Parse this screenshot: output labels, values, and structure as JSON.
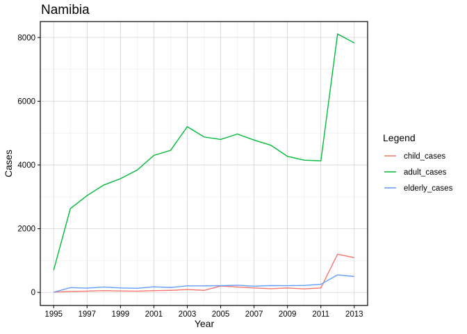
{
  "chart_data": {
    "type": "line",
    "title": "Namibia",
    "xlabel": "Year",
    "ylabel": "Cases",
    "xlim": [
      1994.2,
      2013.8
    ],
    "ylim": [
      -410,
      8500
    ],
    "x_ticks": [
      1995,
      1997,
      1999,
      2001,
      2003,
      2005,
      2007,
      2009,
      2011,
      2013
    ],
    "y_ticks": [
      0,
      2000,
      4000,
      6000,
      8000
    ],
    "x_tick_labels": [
      "1995",
      "1997",
      "1999",
      "2001",
      "2003",
      "2005",
      "2007",
      "2009",
      "2011",
      "2013"
    ],
    "y_tick_labels": [
      "0",
      "2000",
      "4000",
      "6000",
      "8000"
    ],
    "grid": true,
    "legend": {
      "title": "Legend",
      "placement": "right"
    },
    "x": [
      1995,
      1996,
      1997,
      1998,
      1999,
      2000,
      2001,
      2002,
      2003,
      2004,
      2005,
      2006,
      2007,
      2008,
      2009,
      2010,
      2011,
      2012,
      2013
    ],
    "series": [
      {
        "name": "child_cases",
        "color": "#F8766D",
        "values": [
          10,
          30,
          40,
          55,
          45,
          40,
          55,
          65,
          90,
          65,
          200,
          170,
          140,
          115,
          140,
          110,
          140,
          1200,
          1090
        ]
      },
      {
        "name": "adult_cases",
        "color": "#00BA38",
        "values": [
          700,
          2630,
          3040,
          3370,
          3570,
          3840,
          4300,
          4460,
          5200,
          4880,
          4800,
          4970,
          4780,
          4620,
          4270,
          4150,
          4130,
          8110,
          7830
        ]
      },
      {
        "name": "elderly_cases",
        "color": "#619CFF",
        "values": [
          5,
          150,
          135,
          170,
          140,
          130,
          175,
          155,
          205,
          205,
          210,
          225,
          195,
          215,
          210,
          220,
          255,
          550,
          500
        ]
      }
    ]
  }
}
